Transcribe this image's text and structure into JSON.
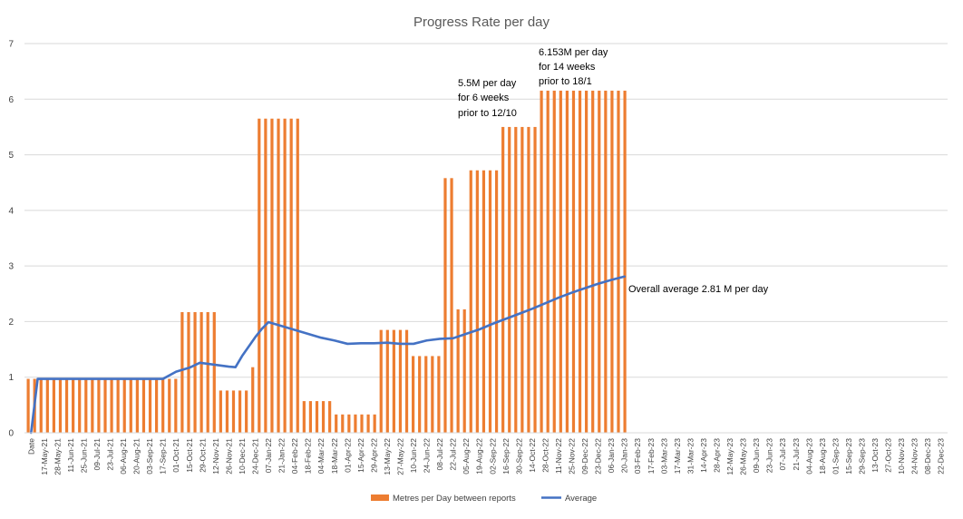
{
  "chart_data": {
    "type": "bar",
    "title": "Progress Rate per day",
    "xlabel": "",
    "ylabel": "",
    "ylim": [
      0,
      7
    ],
    "y_ticks": [
      0,
      1,
      2,
      3,
      4,
      5,
      6,
      7
    ],
    "grid": "horizontal",
    "legend_position": "bottom",
    "x_tick_labels": [
      "Date",
      "17-May-21",
      "28-May-21",
      "11-Jun-21",
      "25-Jun-21",
      "09-Jul-21",
      "23-Jul-21",
      "06-Aug-21",
      "20-Aug-21",
      "03-Sep-21",
      "17-Sep-21",
      "01-Oct-21",
      "15-Oct-21",
      "29-Oct-21",
      "12-Nov-21",
      "26-Nov-21",
      "10-Dec-21",
      "24-Dec-21",
      "07-Jan-22",
      "21-Jan-22",
      "04-Feb-22",
      "18-Feb-22",
      "04-Mar-22",
      "18-Mar-22",
      "01-Apr-22",
      "15-Apr-22",
      "29-Apr-22",
      "13-May-22",
      "27-May-22",
      "10-Jun-22",
      "24-Jun-22",
      "08-Jul-22",
      "22-Jul-22",
      "05-Aug-22",
      "19-Aug-22",
      "02-Sep-22",
      "16-Sep-22",
      "30-Sep-22",
      "14-Oct-22",
      "28-Oct-22",
      "11-Nov-22",
      "25-Nov-22",
      "09-Dec-22",
      "23-Dec-22",
      "06-Jan-23",
      "20-Jan-23",
      "03-Feb-23",
      "17-Feb-23",
      "03-Mar-23",
      "17-Mar-23",
      "31-Mar-23",
      "14-Apr-23",
      "28-Apr-23",
      "12-May-23",
      "26-May-23",
      "09-Jun-23",
      "23-Jun-23",
      "07-Jul-23",
      "21-Jul-23",
      "04-Aug-23",
      "18-Aug-23",
      "01-Sep-23",
      "15-Sep-23",
      "29-Sep-23",
      "13-Oct-23",
      "27-Oct-23",
      "10-Nov-23",
      "24-Nov-23",
      "08-Dec-23",
      "22-Dec-23"
    ],
    "series": [
      {
        "name": "Metres per Day between reports",
        "type": "bar",
        "color": "#ED7D31",
        "values": [
          0.97,
          0.97,
          0.97,
          0.97,
          0.97,
          0.97,
          0.97,
          0.97,
          0.97,
          0.97,
          0.97,
          0.97,
          0.97,
          0.97,
          0.97,
          0.97,
          0.97,
          0.97,
          0.97,
          0.97,
          0.97,
          0.97,
          0.97,
          0.97,
          2.17,
          2.17,
          2.17,
          2.17,
          2.17,
          2.17,
          0.76,
          0.76,
          0.76,
          0.76,
          0.76,
          1.18,
          5.65,
          5.65,
          5.65,
          5.65,
          5.65,
          5.65,
          5.65,
          0.57,
          0.57,
          0.57,
          0.57,
          0.57,
          0.33,
          0.33,
          0.33,
          0.33,
          0.33,
          0.33,
          0.33,
          1.85,
          1.85,
          1.85,
          1.85,
          1.85,
          1.38,
          1.38,
          1.38,
          1.38,
          1.38,
          4.58,
          4.58,
          2.22,
          2.22,
          4.72,
          4.72,
          4.72,
          4.72,
          4.72,
          5.5,
          5.5,
          5.5,
          5.5,
          5.5,
          5.5,
          6.153,
          6.153,
          6.153,
          6.153,
          6.153,
          6.153,
          6.153,
          6.153,
          6.153,
          6.153,
          6.153,
          6.153,
          6.153,
          6.153
        ]
      },
      {
        "name": "Average",
        "type": "line",
        "color": "#4472C4",
        "points": [
          [
            0,
            0
          ],
          [
            0.5,
            0.97
          ],
          [
            5,
            0.97
          ],
          [
            10,
            0.97
          ],
          [
            11,
            1.1
          ],
          [
            12,
            1.17
          ],
          [
            12.8,
            1.26
          ],
          [
            15,
            1.19
          ],
          [
            15.5,
            1.18
          ],
          [
            16,
            1.38
          ],
          [
            17,
            1.72
          ],
          [
            17.5,
            1.87
          ],
          [
            18,
            1.99
          ],
          [
            20,
            1.85
          ],
          [
            22,
            1.71
          ],
          [
            23,
            1.66
          ],
          [
            24,
            1.6
          ],
          [
            25,
            1.61
          ],
          [
            26,
            1.61
          ],
          [
            27,
            1.62
          ],
          [
            28,
            1.6
          ],
          [
            29,
            1.6
          ],
          [
            30,
            1.66
          ],
          [
            31,
            1.69
          ],
          [
            32,
            1.7
          ],
          [
            33,
            1.78
          ],
          [
            34,
            1.86
          ],
          [
            35,
            1.96
          ],
          [
            36,
            2.05
          ],
          [
            37,
            2.14
          ],
          [
            38,
            2.23
          ],
          [
            39,
            2.33
          ],
          [
            40,
            2.43
          ],
          [
            41,
            2.52
          ],
          [
            42,
            2.6
          ],
          [
            43,
            2.68
          ],
          [
            44,
            2.75
          ],
          [
            45,
            2.81
          ]
        ]
      }
    ],
    "annotations": [
      {
        "lines": [
          "5.5M per day",
          "for 6 weeks",
          "prior to 12/10"
        ]
      },
      {
        "lines": [
          "6.153M per day",
          "for 14 weeks",
          "prior to 18/1"
        ]
      },
      {
        "lines": [
          "Overall average 2.81 M per day"
        ]
      }
    ]
  }
}
